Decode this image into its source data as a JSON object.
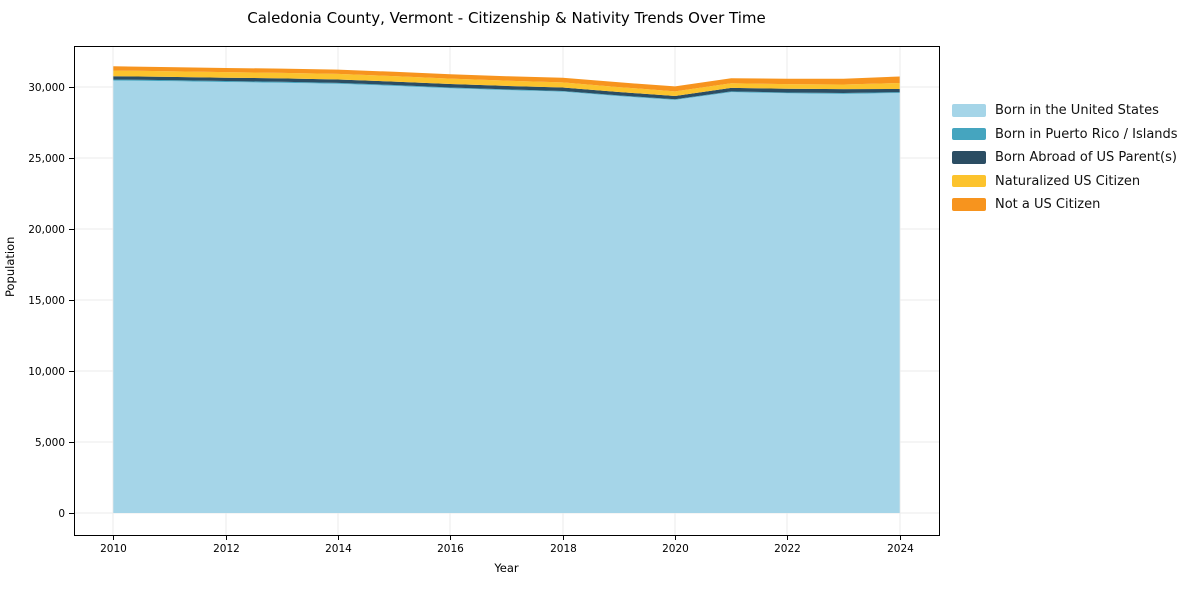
{
  "chart_data": {
    "type": "area",
    "stacked": true,
    "title": "Caledonia County, Vermont - Citizenship & Nativity Trends Over Time",
    "xlabel": "Year",
    "ylabel": "Population",
    "x": [
      2010,
      2011,
      2012,
      2013,
      2014,
      2015,
      2016,
      2017,
      2018,
      2019,
      2020,
      2021,
      2022,
      2023,
      2024
    ],
    "series": [
      {
        "name": "Born in the United States",
        "color": "#a5d5e8",
        "values": [
          30440,
          30390,
          30330,
          30280,
          30210,
          30060,
          29890,
          29760,
          29650,
          29340,
          29070,
          29620,
          29540,
          29500,
          29560
        ]
      },
      {
        "name": "Born in Puerto Rico / Islands",
        "color": "#45a5bf",
        "values": [
          70,
          70,
          70,
          65,
          60,
          60,
          55,
          55,
          50,
          50,
          45,
          50,
          55,
          60,
          60
        ]
      },
      {
        "name": "Born Abroad of US Parent(s)",
        "color": "#2b4d63",
        "values": [
          230,
          230,
          235,
          240,
          240,
          240,
          245,
          240,
          240,
          235,
          230,
          250,
          260,
          270,
          220
        ]
      },
      {
        "name": "Naturalized US Citizen",
        "color": "#fcc32d",
        "values": [
          400,
          400,
          395,
          390,
          390,
          385,
          380,
          370,
          365,
          350,
          330,
          320,
          330,
          330,
          420
        ]
      },
      {
        "name": "Not a US Citizen",
        "color": "#f7941e",
        "values": [
          300,
          290,
          290,
          295,
          300,
          305,
          310,
          315,
          325,
          335,
          345,
          360,
          375,
          400,
          460
        ]
      }
    ],
    "xlim": [
      2009.3,
      2024.7
    ],
    "ylim": [
      -1548,
      32865
    ],
    "x_ticks": [
      2010,
      2012,
      2014,
      2016,
      2018,
      2020,
      2022,
      2024
    ],
    "y_ticks": [
      0,
      5000,
      10000,
      15000,
      20000,
      25000,
      30000
    ],
    "y_tick_labels": [
      "0",
      "5,000",
      "10,000",
      "15,000",
      "20,000",
      "25,000",
      "30,000"
    ],
    "grid": true,
    "legend_position": "right",
    "style": {
      "grid_color": "#ebebeb",
      "spine_color": "#000000",
      "tick_color": "#000000",
      "text_color": "#000000",
      "background": "#ffffff"
    }
  }
}
